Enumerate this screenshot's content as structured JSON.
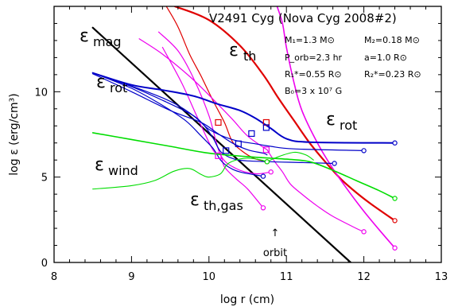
{
  "chart_data": {
    "type": "line",
    "title": "V2491 Cyg (Nova Cyg 2008#2)",
    "xlabel": "log r (cm)",
    "ylabel": "log ε (erg/cm³)",
    "xlim": [
      8,
      13
    ],
    "ylim": [
      0,
      15
    ],
    "xticks": [
      "8",
      "9",
      "10",
      "11",
      "12",
      "13"
    ],
    "yticks": [
      "0",
      "5",
      "10"
    ],
    "ytick_values": [
      0,
      5,
      10
    ],
    "grid": false,
    "parameters": {
      "m1": "M₁=1.3 M⊙",
      "m2": "M₂=0.18 M⊙",
      "porb": "P_orb=2.3 hr",
      "a": "a=1.0 R⊙",
      "r1": "R₁*=0.55 R⊙",
      "r2": "R₂*=0.23 R⊙",
      "b0": "B₀=3 x 10⁷ G"
    },
    "labels": {
      "mag": {
        "main": "ε",
        "sub": "mag"
      },
      "th": {
        "main": "ε",
        "sub": "th"
      },
      "rot_left": {
        "main": "ε",
        "sub": "rot"
      },
      "rot_right": {
        "main": "ε",
        "sub": "rot"
      },
      "wind": {
        "main": "ε",
        "sub": "wind"
      },
      "th_gas": {
        "main": "ε",
        "sub": "th,gas"
      }
    },
    "annotation": {
      "text": "orbit",
      "arrow": "↑",
      "x": 10.8
    },
    "colors": {
      "black": "#000000",
      "red": "#e00000",
      "magenta": "#ee00ee",
      "blue": "#0000c8",
      "green": "#00dd00"
    },
    "series": [
      {
        "id": "mag",
        "color": "black",
        "width": 2.2,
        "points": [
          [
            8.5,
            13.75
          ],
          [
            11.83,
            0
          ]
        ]
      },
      {
        "id": "th-1",
        "color": "red",
        "width": 2.2,
        "end_marker": true,
        "points": [
          [
            9.56,
            15
          ],
          [
            10.0,
            14.2
          ],
          [
            10.4,
            12.7
          ],
          [
            10.7,
            11.0
          ],
          [
            10.9,
            9.6
          ],
          [
            11.1,
            8.3
          ],
          [
            11.3,
            7.0
          ],
          [
            11.5,
            5.9
          ],
          [
            11.7,
            4.9
          ],
          [
            11.9,
            4.1
          ],
          [
            12.1,
            3.4
          ],
          [
            12.4,
            2.45
          ]
        ]
      },
      {
        "id": "th-2",
        "color": "red",
        "width": 1.2,
        "end_marker": true,
        "points": [
          [
            9.45,
            15
          ],
          [
            9.6,
            13.8
          ],
          [
            9.75,
            12.2
          ],
          [
            9.9,
            10.9
          ],
          [
            10.05,
            9.5
          ],
          [
            10.2,
            8.2
          ],
          [
            10.3,
            7.1
          ],
          [
            10.42,
            6.55
          ],
          [
            10.58,
            6.1
          ],
          [
            10.75,
            5.9
          ]
        ]
      },
      {
        "id": "thgas-1",
        "color": "magenta",
        "width": 1.6,
        "end_marker": true,
        "points": [
          [
            10.88,
            15
          ],
          [
            10.95,
            14.0
          ],
          [
            11.0,
            12.6
          ],
          [
            11.1,
            10.5
          ],
          [
            11.2,
            8.9
          ],
          [
            11.4,
            7.0
          ],
          [
            11.6,
            5.5
          ],
          [
            11.8,
            4.2
          ],
          [
            12.0,
            3.0
          ],
          [
            12.2,
            1.9
          ],
          [
            12.4,
            0.85
          ]
        ]
      },
      {
        "id": "thgas-2",
        "color": "magenta",
        "width": 1.2,
        "points": [
          [
            9.1,
            13.1
          ],
          [
            9.4,
            12.2
          ],
          [
            9.75,
            10.9
          ],
          [
            10.0,
            9.8
          ],
          [
            10.3,
            8.4
          ],
          [
            10.5,
            7.4
          ],
          [
            10.75,
            6.6
          ]
        ]
      },
      {
        "id": "thgas-3",
        "color": "magenta",
        "width": 1.2,
        "end_marker": true,
        "points": [
          [
            10.75,
            6.6
          ],
          [
            10.85,
            5.9
          ],
          [
            10.95,
            5.3
          ],
          [
            11.05,
            4.6
          ],
          [
            11.2,
            4.0
          ],
          [
            11.4,
            3.3
          ],
          [
            11.6,
            2.7
          ],
          [
            11.9,
            2.0
          ],
          [
            12.0,
            1.8
          ]
        ]
      },
      {
        "id": "thgas-4",
        "color": "magenta",
        "width": 1.2,
        "end_marker": true,
        "points": [
          [
            9.35,
            13.5
          ],
          [
            9.6,
            12.4
          ],
          [
            9.8,
            10.8
          ],
          [
            10.0,
            8.6
          ],
          [
            10.15,
            6.3
          ],
          [
            10.35,
            5.5
          ],
          [
            10.6,
            5.2
          ],
          [
            10.8,
            5.3
          ]
        ]
      },
      {
        "id": "thgas-5",
        "color": "magenta",
        "width": 1.2,
        "end_marker": true,
        "points": [
          [
            9.4,
            12.6
          ],
          [
            9.65,
            10.5
          ],
          [
            9.85,
            8.5
          ],
          [
            10.05,
            6.6
          ],
          [
            10.15,
            6.3
          ],
          [
            10.2,
            5.6
          ],
          [
            10.35,
            4.9
          ],
          [
            10.5,
            4.3
          ],
          [
            10.7,
            3.2
          ]
        ]
      },
      {
        "id": "rot-1",
        "color": "blue",
        "width": 2.0,
        "end_marker": true,
        "points": [
          [
            8.5,
            11.1
          ],
          [
            9.0,
            10.4
          ],
          [
            9.4,
            10.1
          ],
          [
            9.8,
            9.75
          ],
          [
            10.1,
            9.3
          ],
          [
            10.4,
            8.9
          ],
          [
            10.6,
            8.45
          ],
          [
            10.8,
            7.85
          ],
          [
            11.0,
            7.25
          ],
          [
            11.3,
            7.05
          ],
          [
            12.4,
            7.0
          ]
        ]
      },
      {
        "id": "rot-2",
        "color": "blue",
        "width": 1.2,
        "end_marker": true,
        "points": [
          [
            8.5,
            11.1
          ],
          [
            9.0,
            10.3
          ],
          [
            9.4,
            9.5
          ],
          [
            9.8,
            8.6
          ],
          [
            10.0,
            7.8
          ],
          [
            10.3,
            7.2
          ],
          [
            10.6,
            6.95
          ],
          [
            10.8,
            6.8
          ],
          [
            11.1,
            6.65
          ],
          [
            12.0,
            6.55
          ]
        ]
      },
      {
        "id": "rot-3",
        "color": "blue",
        "width": 1.2,
        "end_marker": true,
        "points": [
          [
            8.5,
            11.1
          ],
          [
            9.2,
            10.0
          ],
          [
            9.6,
            9.2
          ],
          [
            9.9,
            8.2
          ],
          [
            10.05,
            7.3
          ],
          [
            10.15,
            6.5
          ],
          [
            10.3,
            6.1
          ],
          [
            10.5,
            5.95
          ],
          [
            11.2,
            5.85
          ],
          [
            11.62,
            5.8
          ]
        ]
      },
      {
        "id": "rot-4",
        "color": "blue",
        "width": 1.2,
        "end_marker": true,
        "points": [
          [
            8.5,
            11.1
          ],
          [
            9.0,
            10.2
          ],
          [
            9.4,
            9.2
          ],
          [
            9.7,
            8.3
          ],
          [
            9.9,
            7.4
          ],
          [
            10.05,
            6.7
          ],
          [
            10.15,
            6.0
          ],
          [
            10.25,
            5.6
          ],
          [
            10.4,
            5.3
          ],
          [
            10.7,
            5.05
          ]
        ]
      },
      {
        "id": "rot-5",
        "color": "blue",
        "width": 1.2,
        "points": [
          [
            8.5,
            11.05
          ],
          [
            9.0,
            10.0
          ],
          [
            9.5,
            8.9
          ],
          [
            9.9,
            8.2
          ],
          [
            10.1,
            7.6
          ],
          [
            10.3,
            7.0
          ],
          [
            10.5,
            6.6
          ],
          [
            10.7,
            6.4
          ],
          [
            10.75,
            6.3
          ]
        ]
      },
      {
        "id": "wind-1",
        "color": "green",
        "width": 1.6,
        "end_marker": true,
        "points": [
          [
            8.5,
            7.6
          ],
          [
            9.0,
            7.2
          ],
          [
            9.5,
            6.8
          ],
          [
            10.0,
            6.4
          ],
          [
            10.5,
            6.2
          ],
          [
            11.0,
            6.05
          ],
          [
            11.3,
            5.9
          ],
          [
            11.6,
            5.4
          ],
          [
            11.9,
            4.8
          ],
          [
            12.2,
            4.2
          ],
          [
            12.4,
            3.75
          ]
        ]
      },
      {
        "id": "wind-2",
        "color": "green",
        "width": 1.1,
        "end_marker": true,
        "points": [
          [
            8.5,
            4.3
          ],
          [
            9.0,
            4.5
          ],
          [
            9.3,
            4.8
          ],
          [
            9.55,
            5.35
          ],
          [
            9.75,
            5.5
          ],
          [
            9.9,
            5.15
          ],
          [
            10.0,
            5.0
          ],
          [
            10.15,
            5.2
          ],
          [
            10.25,
            5.8
          ],
          [
            10.45,
            6.1
          ],
          [
            10.62,
            6.05
          ],
          [
            10.75,
            5.9
          ]
        ]
      },
      {
        "id": "wind-3",
        "color": "green",
        "width": 1.1,
        "points": [
          [
            10.75,
            5.9
          ],
          [
            10.9,
            6.2
          ],
          [
            11.1,
            6.45
          ],
          [
            11.25,
            6.3
          ],
          [
            11.35,
            6.0
          ]
        ]
      }
    ],
    "markers": [
      {
        "x": 10.12,
        "y": 8.2,
        "color": "red"
      },
      {
        "x": 10.74,
        "y": 8.2,
        "color": "red"
      },
      {
        "x": 10.55,
        "y": 7.55,
        "color": "blue"
      },
      {
        "x": 10.74,
        "y": 7.9,
        "color": "blue"
      },
      {
        "x": 10.38,
        "y": 6.95,
        "color": "blue"
      },
      {
        "x": 10.22,
        "y": 6.55,
        "color": "blue"
      },
      {
        "x": 10.74,
        "y": 6.6,
        "color": "magenta"
      },
      {
        "x": 10.12,
        "y": 6.25,
        "color": "magenta"
      }
    ]
  }
}
